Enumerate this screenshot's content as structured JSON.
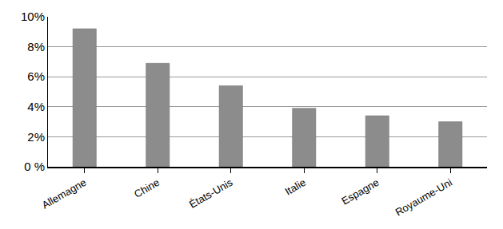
{
  "chart_data": {
    "type": "bar",
    "categories": [
      "Allemagne",
      "Chine",
      "États-Unis",
      "Italie",
      "Espagne",
      "Royaume-Uni"
    ],
    "values": [
      9.2,
      6.9,
      5.4,
      3.9,
      3.4,
      3.0
    ],
    "color": "#8c8c8c",
    "ylim": [
      0,
      10
    ],
    "yticks": [
      {
        "value": 0,
        "label": "0 %"
      },
      {
        "value": 2,
        "label": "2%"
      },
      {
        "value": 4,
        "label": "4%"
      },
      {
        "value": 6,
        "label": "6%"
      },
      {
        "value": 8,
        "label": "8%"
      },
      {
        "value": 10,
        "label": "10%"
      }
    ],
    "grid": true
  }
}
